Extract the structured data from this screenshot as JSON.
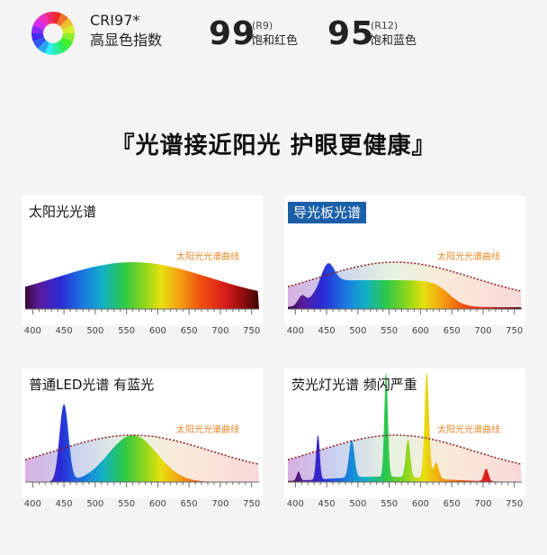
{
  "header": {
    "cri_title": "CRI97*",
    "cri_sub": "高显色指数",
    "r9": {
      "value": "99",
      "tag": "(R9)",
      "label": "饱和红色"
    },
    "r12": {
      "value": "95",
      "tag": "(R12)",
      "label": "饱和蓝色"
    }
  },
  "slogan": "『光谱接近阳光 护眼更健康』",
  "panels": [
    {
      "title": "太阳光光谱",
      "curve_label": ""
    },
    {
      "title": "导光板光谱",
      "curve_label": "太阳光光谱曲线"
    },
    {
      "title": "普通LED光谱 有蓝光",
      "curve_label": "太阳光光谱曲线"
    },
    {
      "title": "荧光灯光谱 频闪严重",
      "curve_label": "太阳光光谱曲线"
    }
  ],
  "sun_label": "太阳光光谱曲线",
  "axis_ticks": [
    "400",
    "450",
    "500",
    "550",
    "600",
    "650",
    "700",
    "750"
  ],
  "colors": {
    "accent_blue": "#1b5fa8",
    "curve_orange": "#e88a2a",
    "dotted_curve": "#8b1a1a"
  }
}
